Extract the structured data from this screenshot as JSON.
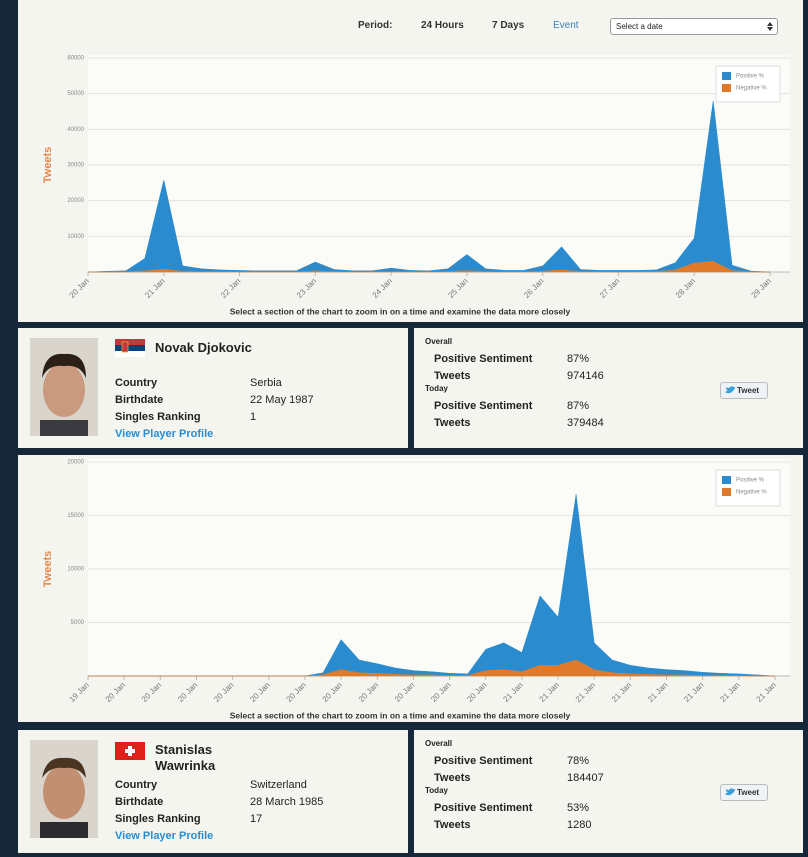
{
  "toolbar": {
    "period_label": "Period:",
    "options": [
      "24 Hours",
      "7 Days",
      "Event"
    ],
    "date_select": "Select a date"
  },
  "chart_data": [
    {
      "type": "area",
      "stacked": true,
      "y_label": "Tweets",
      "caption": "Select a section of the chart to zoom in on a time and examine the data more closely",
      "categories": [
        "20 Jan",
        null,
        null,
        null,
        "21 Jan",
        null,
        null,
        null,
        "22 Jan",
        null,
        null,
        null,
        "23 Jan",
        null,
        null,
        null,
        "24 Jan",
        null,
        null,
        null,
        "25 Jan",
        null,
        null,
        null,
        "26 Jan",
        null,
        null,
        null,
        "27 Jan",
        null,
        null,
        null,
        "28 Jan",
        null,
        null,
        null,
        "29 Jan"
      ],
      "series": [
        {
          "name": "Positive %",
          "color": "#2a8ccf",
          "values": [
            0,
            200,
            300,
            3500,
            25000,
            1500,
            800,
            500,
            400,
            300,
            300,
            300,
            2500,
            600,
            300,
            300,
            1000,
            400,
            300,
            800,
            4500,
            800,
            400,
            400,
            1500,
            6500,
            600,
            400,
            400,
            400,
            500,
            2000,
            7000,
            45000,
            1500,
            200,
            0
          ]
        },
        {
          "name": "Negative %",
          "color": "#e07a2a",
          "values": [
            0,
            0,
            50,
            300,
            800,
            200,
            100,
            100,
            50,
            50,
            50,
            50,
            300,
            100,
            50,
            50,
            100,
            50,
            50,
            100,
            400,
            100,
            50,
            50,
            200,
            600,
            100,
            50,
            50,
            50,
            100,
            600,
            2500,
            3000,
            400,
            50,
            0
          ]
        }
      ],
      "ylim": [
        0,
        60000
      ],
      "yticks": [
        10000,
        20000,
        30000,
        40000,
        50000,
        60000
      ],
      "grid": true,
      "legend": "top-right"
    },
    {
      "type": "area",
      "stacked": true,
      "y_label": "Tweets",
      "caption": "Select a section of the chart to zoom in on a time and examine the data more closely",
      "categories": [
        "19 Jan",
        null,
        "20 Jan",
        null,
        "20 Jan",
        null,
        "20 Jan",
        null,
        "20 Jan",
        null,
        "20 Jan",
        null,
        "20 Jan",
        null,
        "20 Jan",
        null,
        "20 Jan",
        null,
        "20 Jan",
        null,
        "20 Jan",
        null,
        "20 Jan",
        null,
        "21 Jan",
        null,
        "21 Jan",
        null,
        "21 Jan",
        null,
        "21 Jan",
        null,
        "21 Jan",
        null,
        "21 Jan",
        null,
        "21 Jan",
        null,
        "21 Jan"
      ],
      "series": [
        {
          "name": "Positive %",
          "color": "#2a8ccf",
          "values": [
            0,
            0,
            0,
            0,
            0,
            0,
            0,
            0,
            0,
            0,
            0,
            0,
            0,
            200,
            2800,
            1200,
            900,
            600,
            400,
            300,
            200,
            150,
            2000,
            2500,
            1800,
            6500,
            4500,
            15500,
            2500,
            1200,
            800,
            600,
            500,
            400,
            300,
            200,
            150,
            100,
            0
          ]
        },
        {
          "name": "Negative %",
          "color": "#e07a2a",
          "values": [
            0,
            0,
            0,
            0,
            0,
            0,
            0,
            0,
            0,
            0,
            0,
            0,
            0,
            100,
            600,
            300,
            250,
            150,
            100,
            100,
            50,
            50,
            500,
            600,
            400,
            1000,
            1000,
            1500,
            600,
            300,
            200,
            150,
            100,
            100,
            50,
            50,
            50,
            0,
            0
          ]
        }
      ],
      "ylim": [
        0,
        20000
      ],
      "yticks": [
        5000,
        10000,
        15000,
        20000
      ],
      "grid": true,
      "legend": "top-right"
    }
  ],
  "players": [
    {
      "name": "Novak Djokovic",
      "fields": [
        {
          "label": "Country",
          "value": "Serbia"
        },
        {
          "label": "Birthdate",
          "value": "22 May 1987"
        },
        {
          "label": "Singles Ranking",
          "value": "1"
        }
      ],
      "profile_link": "View Player Profile",
      "stats": [
        {
          "heading": "Overall",
          "rows": [
            {
              "label": "Positive Sentiment",
              "value": "87%"
            },
            {
              "label": "Tweets",
              "value": "974146"
            }
          ]
        },
        {
          "heading": "Today",
          "rows": [
            {
              "label": "Positive Sentiment",
              "value": "87%"
            },
            {
              "label": "Tweets",
              "value": "379484"
            }
          ]
        }
      ],
      "tweet": "Tweet"
    },
    {
      "name": "Stanislas Wawrinka",
      "fields": [
        {
          "label": "Country",
          "value": "Switzerland"
        },
        {
          "label": "Birthdate",
          "value": "28 March 1985"
        },
        {
          "label": "Singles Ranking",
          "value": "17"
        }
      ],
      "profile_link": "View Player Profile",
      "stats": [
        {
          "heading": "Overall",
          "rows": [
            {
              "label": "Positive Sentiment",
              "value": "78%"
            },
            {
              "label": "Tweets",
              "value": "184407"
            }
          ]
        },
        {
          "heading": "Today",
          "rows": [
            {
              "label": "Positive Sentiment",
              "value": "53%"
            },
            {
              "label": "Tweets",
              "value": "1280"
            }
          ]
        }
      ],
      "tweet": "Tweet"
    }
  ]
}
